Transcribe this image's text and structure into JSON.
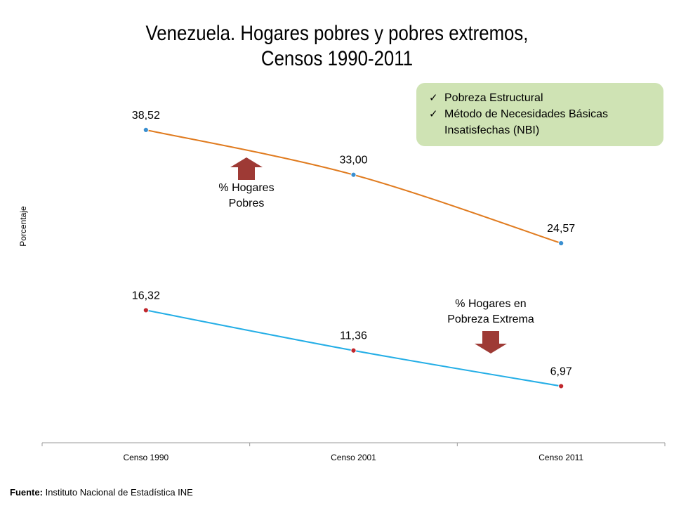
{
  "title": [
    "Venezuela. Hogares pobres y pobres extremos,",
    "Censos 1990-2011"
  ],
  "note_box": {
    "items": [
      "Pobreza Estructural",
      "Método de Necesidades Básicas Insatisfechas (NBI)"
    ],
    "background": "#cfe3b4"
  },
  "footer": {
    "label": "Fuente:",
    "text": "Instituto Nacional de Estadística INE"
  },
  "chart_data": {
    "type": "line",
    "title": "Venezuela. Hogares pobres y pobres extremos, Censos 1990-2011",
    "categories": [
      "Censo 1990",
      "Censo 2001",
      "Censo 2011"
    ],
    "ylabel": "Porcentaje",
    "xlabel": "",
    "ylim": [
      0,
      45
    ],
    "grid": false,
    "series": [
      {
        "values": [
          38.52,
          33.0,
          24.57
        ],
        "labels": [
          "38,52",
          "33,00",
          "24,57"
        ],
        "line_color": "#e07b1f",
        "marker_color": "#3a8fd0"
      },
      {
        "values": [
          16.32,
          11.36,
          6.97
        ],
        "labels": [
          "16,32",
          "11,36",
          "6,97"
        ],
        "line_color": "#24aee6",
        "marker_color": "#c0272d"
      }
    ],
    "annotations": [
      {
        "text": [
          "% Hogares",
          "Pobres"
        ],
        "arrow": "up",
        "arrow_color": "#9e3a35"
      },
      {
        "text": [
          "% Hogares en",
          "Pobreza Extrema"
        ],
        "arrow": "down",
        "arrow_color": "#9e3a35"
      }
    ]
  }
}
